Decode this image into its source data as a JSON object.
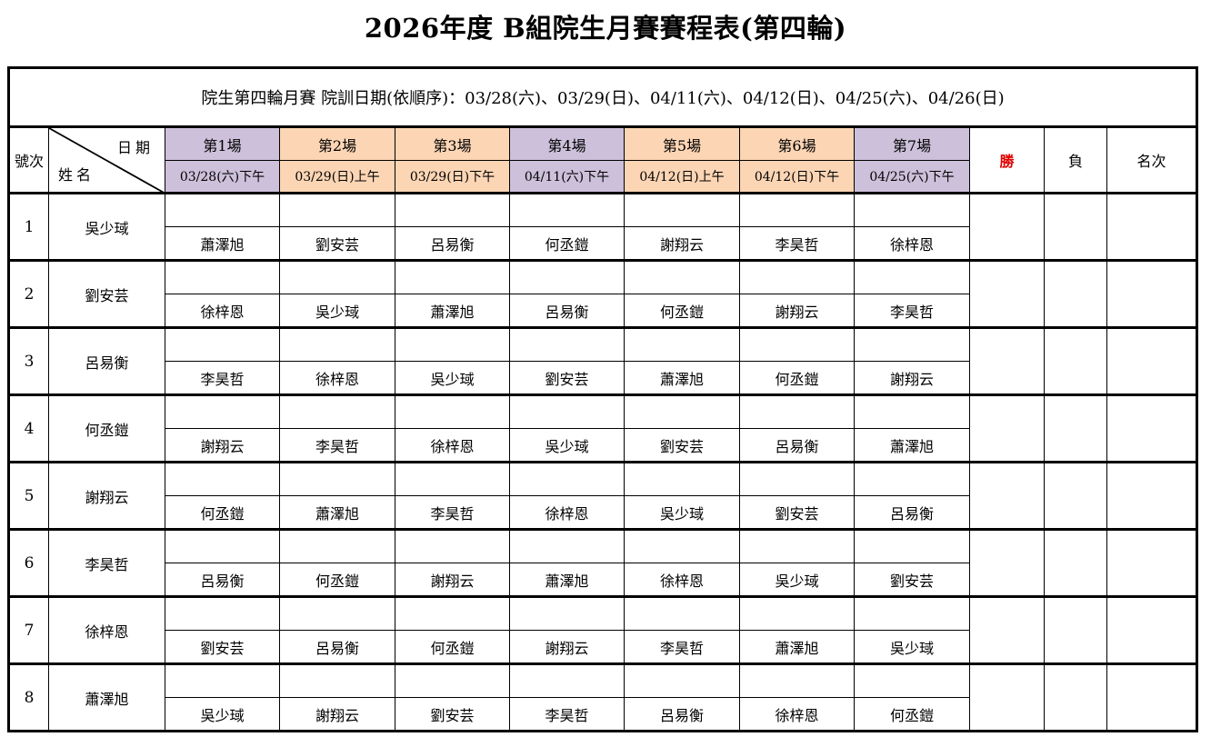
{
  "title": "2026年度 B組院生月賽賽程表(第四輪)",
  "info": "院生第四輪月賽 院訓日期(依順序)：03/28(六)、03/29(日)、04/11(六)、04/12(日)、04/25(六)、04/26(日)",
  "headers": {
    "seq": "號次",
    "date": "日期",
    "name": "姓名",
    "win": "勝",
    "loss": "負",
    "rank": "名次"
  },
  "colors": {
    "purple": "#ccc0da",
    "orange": "#fcd5b4",
    "win_text": "#e00000"
  },
  "matches": [
    {
      "label": "第1場",
      "date": "03/28(六)下午",
      "color": "purple"
    },
    {
      "label": "第2場",
      "date": "03/29(日)上午",
      "color": "orange"
    },
    {
      "label": "第3場",
      "date": "03/29(日)下午",
      "color": "orange"
    },
    {
      "label": "第4場",
      "date": "04/11(六)下午",
      "color": "purple"
    },
    {
      "label": "第5場",
      "date": "04/12(日)上午",
      "color": "orange"
    },
    {
      "label": "第6場",
      "date": "04/12(日)下午",
      "color": "orange"
    },
    {
      "label": "第7場",
      "date": "04/25(六)下午",
      "color": "purple"
    }
  ],
  "players": [
    {
      "no": "1",
      "name": "吳少琙",
      "opponents": [
        "蕭澤旭",
        "劉安芸",
        "呂易衡",
        "何丞鎧",
        "謝翔云",
        "李昊哲",
        "徐梓恩"
      ]
    },
    {
      "no": "2",
      "name": "劉安芸",
      "opponents": [
        "徐梓恩",
        "吳少琙",
        "蕭澤旭",
        "呂易衡",
        "何丞鎧",
        "謝翔云",
        "李昊哲"
      ]
    },
    {
      "no": "3",
      "name": "呂易衡",
      "opponents": [
        "李昊哲",
        "徐梓恩",
        "吳少琙",
        "劉安芸",
        "蕭澤旭",
        "何丞鎧",
        "謝翔云"
      ]
    },
    {
      "no": "4",
      "name": "何丞鎧",
      "opponents": [
        "謝翔云",
        "李昊哲",
        "徐梓恩",
        "吳少琙",
        "劉安芸",
        "呂易衡",
        "蕭澤旭"
      ]
    },
    {
      "no": "5",
      "name": "謝翔云",
      "opponents": [
        "何丞鎧",
        "蕭澤旭",
        "李昊哲",
        "徐梓恩",
        "吳少琙",
        "劉安芸",
        "呂易衡"
      ]
    },
    {
      "no": "6",
      "name": "李昊哲",
      "opponents": [
        "呂易衡",
        "何丞鎧",
        "謝翔云",
        "蕭澤旭",
        "徐梓恩",
        "吳少琙",
        "劉安芸"
      ]
    },
    {
      "no": "7",
      "name": "徐梓恩",
      "opponents": [
        "劉安芸",
        "呂易衡",
        "何丞鎧",
        "謝翔云",
        "李昊哲",
        "蕭澤旭",
        "吳少琙"
      ]
    },
    {
      "no": "8",
      "name": "蕭澤旭",
      "opponents": [
        "吳少琙",
        "謝翔云",
        "劉安芸",
        "李昊哲",
        "呂易衡",
        "徐梓恩",
        "何丞鎧"
      ]
    }
  ]
}
